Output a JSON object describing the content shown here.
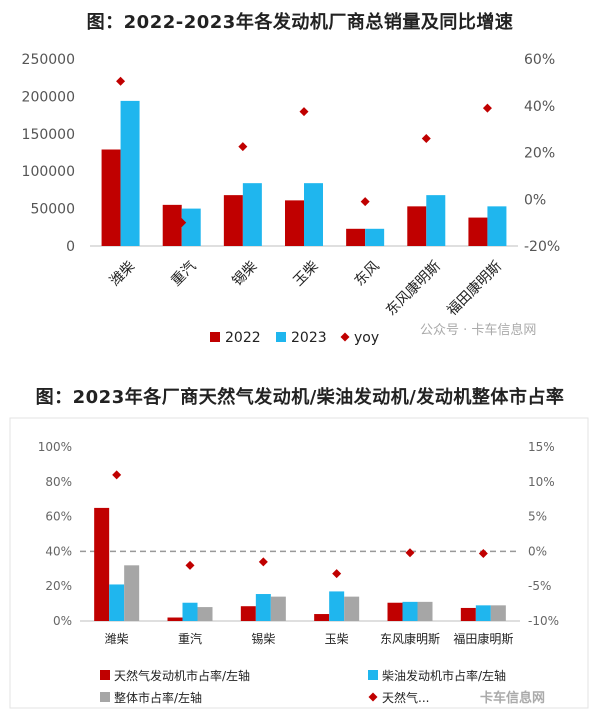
{
  "chart_data": [
    {
      "type": "bar",
      "title": "图：2022-2023年各发动机厂商总销量及同比增速",
      "categories": [
        "潍柴",
        "重汽",
        "锡柴",
        "玉柴",
        "东风",
        "东风康明斯",
        "福田康明斯"
      ],
      "series": [
        {
          "name": "2022",
          "type": "bar",
          "axis": "left",
          "color": "#c00000",
          "values": [
            129000,
            55000,
            68000,
            61000,
            23000,
            53000,
            38000
          ]
        },
        {
          "name": "2023",
          "type": "bar",
          "axis": "left",
          "color": "#1fb6ee",
          "values": [
            194000,
            50000,
            84000,
            84000,
            23000,
            68000,
            53000
          ]
        },
        {
          "name": "yoy",
          "type": "scatter",
          "axis": "right",
          "color": "#c00000",
          "values": [
            50.5,
            -10,
            22.5,
            37.5,
            -1,
            26,
            39
          ]
        }
      ],
      "y_left": {
        "min": 0,
        "max": 250000,
        "ticks": [
          "0",
          "50000",
          "100000",
          "150000",
          "200000",
          "250000"
        ]
      },
      "y_right": {
        "min": -20,
        "max": 60,
        "ticks": [
          "-20%",
          "0%",
          "20%",
          "40%",
          "60%"
        ]
      },
      "legend": {
        "position": "bottom",
        "labels": [
          "2022",
          "2023",
          "yoy"
        ]
      },
      "watermark": "公众号 · 卡车信息网",
      "grid": false
    },
    {
      "type": "bar",
      "title": "图：2023年各厂商天然气发动机/柴油发动机/发动机整体市占率",
      "categories": [
        "潍柴",
        "重汽",
        "锡柴",
        "玉柴",
        "东风康明斯",
        "福田康明斯"
      ],
      "series": [
        {
          "name": "天然气发动机市占率/左轴",
          "type": "bar",
          "axis": "left",
          "color": "#c00000",
          "values": [
            65,
            2,
            8.5,
            4,
            10.5,
            7.5
          ]
        },
        {
          "name": "柴油发动机市占率/左轴",
          "type": "bar",
          "axis": "left",
          "color": "#1fb6ee",
          "values": [
            21,
            10.5,
            15.5,
            17,
            11,
            9
          ]
        },
        {
          "name": "整体市占率/左轴",
          "type": "bar",
          "axis": "left",
          "color": "#a6a6a6",
          "values": [
            32,
            8,
            14,
            14,
            11,
            9
          ]
        },
        {
          "name": "天然气...",
          "type": "scatter",
          "axis": "right",
          "color": "#c00000",
          "values": [
            11,
            -2,
            -1.5,
            -3.2,
            -0.2,
            -0.3
          ]
        }
      ],
      "y_left": {
        "min": 0,
        "max": 100,
        "ticks": [
          "0%",
          "20%",
          "40%",
          "60%",
          "80%",
          "100%"
        ]
      },
      "y_right": {
        "min": -10,
        "max": 15,
        "ticks": [
          "-10%",
          "-5%",
          "0%",
          "5%",
          "10%",
          "15%"
        ]
      },
      "reference_line": {
        "axis": "right",
        "value": 0,
        "style": "dashed"
      },
      "legend": {
        "position": "bottom",
        "labels": [
          "天然气发动机市占率/左轴",
          "柴油发动机市占率/左轴",
          "整体市占率/左轴",
          "天然气..."
        ]
      },
      "watermark": "卡车信息网",
      "grid": false
    }
  ]
}
